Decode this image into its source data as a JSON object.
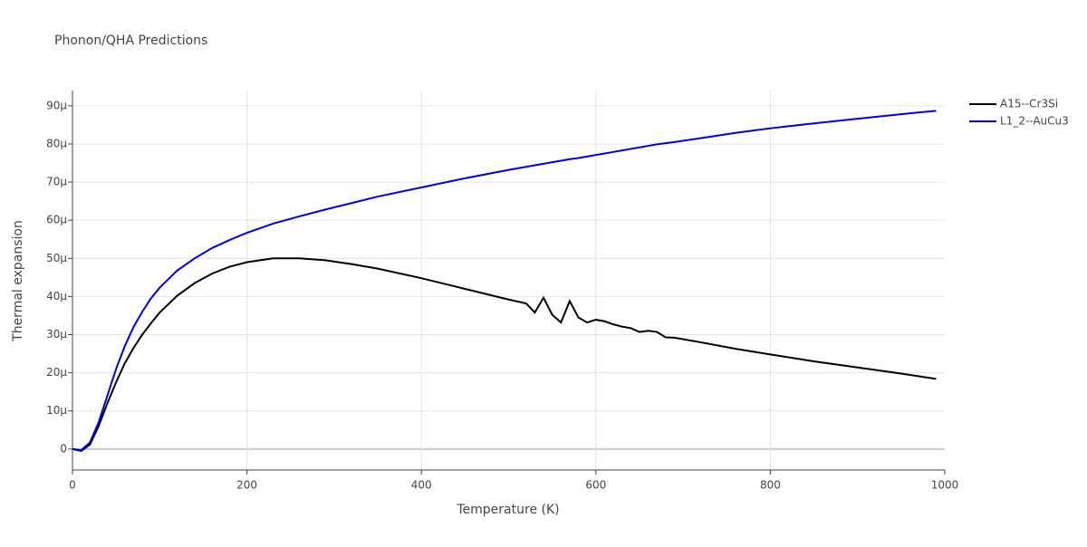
{
  "chart_data": {
    "type": "line",
    "title": "Phonon/QHA Predictions",
    "x_label": "Temperature (K)",
    "y_label": "Thermal expansion",
    "x": [
      0,
      10,
      20,
      30,
      40,
      50,
      60,
      70,
      80,
      90,
      100,
      120,
      140,
      160,
      180,
      200,
      230,
      260,
      290,
      320,
      350,
      400,
      450,
      500,
      520,
      530,
      540,
      550,
      560,
      570,
      580,
      590,
      600,
      610,
      620,
      630,
      640,
      650,
      660,
      670,
      680,
      690,
      720,
      760,
      800,
      850,
      900,
      950,
      990
    ],
    "series": [
      {
        "name": "A15--Cr3Si",
        "color": "#000000",
        "values": [
          0,
          -5e-07,
          1.2e-06,
          6e-06,
          1.2e-05,
          1.75e-05,
          2.25e-05,
          2.65e-05,
          3e-05,
          3.3e-05,
          3.58e-05,
          4.02e-05,
          4.35e-05,
          4.6e-05,
          4.78e-05,
          4.9e-05,
          5e-05,
          5e-05,
          4.95e-05,
          4.85e-05,
          4.73e-05,
          4.48e-05,
          4.2e-05,
          3.92e-05,
          3.82e-05,
          3.58e-05,
          3.97e-05,
          3.52e-05,
          3.32e-05,
          3.88e-05,
          3.45e-05,
          3.32e-05,
          3.39e-05,
          3.35e-05,
          3.27e-05,
          3.21e-05,
          3.17e-05,
          3.07e-05,
          3.1e-05,
          3.07e-05,
          2.93e-05,
          2.92e-05,
          2.8e-05,
          2.63e-05,
          2.48e-05,
          2.3e-05,
          2.14e-05,
          1.98e-05,
          1.84e-05
        ]
      },
      {
        "name": "L1_2--AuCu3",
        "color": "#0000dd",
        "values": [
          0,
          -3e-07,
          1.7e-06,
          7e-06,
          1.4e-05,
          2.1e-05,
          2.7e-05,
          3.2e-05,
          3.6e-05,
          3.95e-05,
          4.23e-05,
          4.68e-05,
          5e-05,
          5.27e-05,
          5.48e-05,
          5.67e-05,
          5.91e-05,
          6.1e-05,
          6.28e-05,
          6.45e-05,
          6.62e-05,
          6.86e-05,
          7.1e-05,
          7.32e-05,
          7.4e-05,
          7.44e-05,
          7.48e-05,
          7.52e-05,
          7.56e-05,
          7.6e-05,
          7.63e-05,
          7.67e-05,
          7.71e-05,
          7.75e-05,
          7.79e-05,
          7.83e-05,
          7.87e-05,
          7.91e-05,
          7.95e-05,
          7.99e-05,
          8.02e-05,
          8.05e-05,
          8.15e-05,
          8.29e-05,
          8.41e-05,
          8.54e-05,
          8.66e-05,
          8.78e-05,
          8.87e-05
        ]
      }
    ],
    "xlim": [
      0,
      1000
    ],
    "xticks": [
      0,
      200,
      400,
      600,
      800,
      1000
    ],
    "ylim": [
      -5.5e-06,
      9.4e-05
    ],
    "yticks": [
      0,
      {
        "value": 1e-05,
        "label": "10µ"
      },
      {
        "value": 2e-05,
        "label": "20µ"
      },
      {
        "value": 3e-05,
        "label": "30µ"
      },
      {
        "value": 4e-05,
        "label": "40µ"
      },
      {
        "value": 5e-05,
        "label": "50µ"
      },
      {
        "value": 6e-05,
        "label": "60µ"
      },
      {
        "value": 7e-05,
        "label": "70µ"
      },
      {
        "value": 8e-05,
        "label": "80µ"
      },
      {
        "value": 9e-05,
        "label": "90µ"
      }
    ],
    "grid": true,
    "legend": "top-right"
  }
}
